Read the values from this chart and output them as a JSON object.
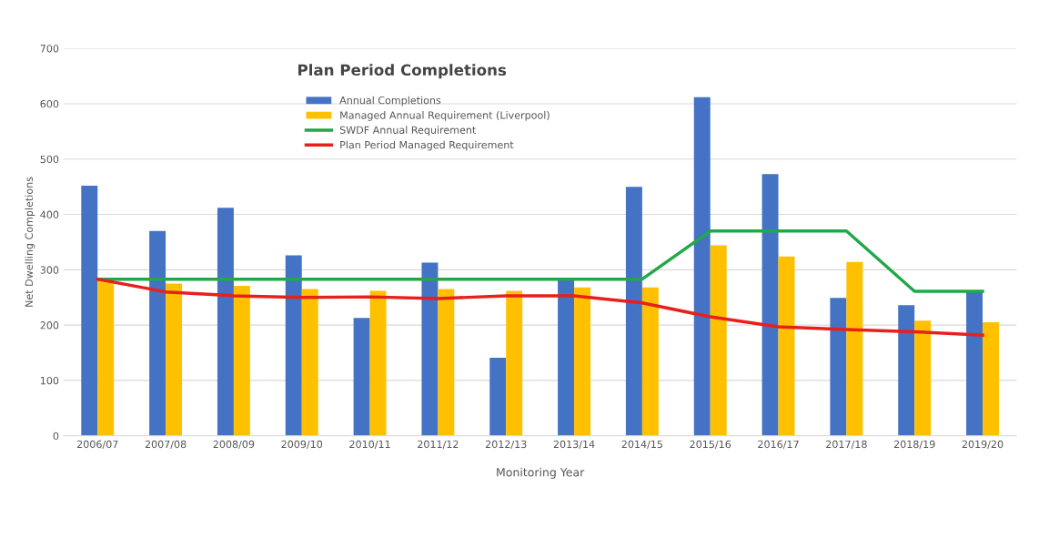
{
  "chart_data": {
    "type": "bar",
    "title": "Plan Period Completions",
    "xlabel": "Monitoring Year",
    "ylabel": "Net Dwelling Completions",
    "categories": [
      "2006/07",
      "2007/08",
      "2008/09",
      "2009/10",
      "2010/11",
      "2011/12",
      "2012/13",
      "2013/14",
      "2014/15",
      "2015/16",
      "2016/17",
      "2017/18",
      "2018/19",
      "2019/20"
    ],
    "series": [
      {
        "name": "Annual Completions",
        "color": "#4472c4",
        "values": [
          452,
          370,
          412,
          326,
          213,
          313,
          141,
          283,
          450,
          612,
          473,
          249,
          236,
          260
        ]
      },
      {
        "name": "Managed Annual Requirement (Liverpool)",
        "color": "#ffc000",
        "values": [
          283,
          275,
          271,
          265,
          262,
          265,
          262,
          268,
          268,
          344,
          324,
          314,
          208,
          205
        ]
      },
      {
        "name": "SWDF Annual Requirement",
        "type": "line",
        "color": "#22a84a",
        "values": [
          283,
          283,
          283,
          283,
          283,
          283,
          283,
          283,
          283,
          370,
          370,
          370,
          261,
          261
        ]
      },
      {
        "name": "Plan Period Managed Requirement",
        "type": "line",
        "color": "#e8201c",
        "values": [
          283,
          260,
          253,
          250,
          251,
          248,
          253,
          253,
          240,
          215,
          197,
          192,
          188,
          182
        ]
      }
    ],
    "ylim": [
      0,
      700
    ],
    "yticks": [
      0,
      100,
      200,
      300,
      400,
      500,
      600,
      700
    ],
    "grid": "y",
    "legend": "top left"
  }
}
